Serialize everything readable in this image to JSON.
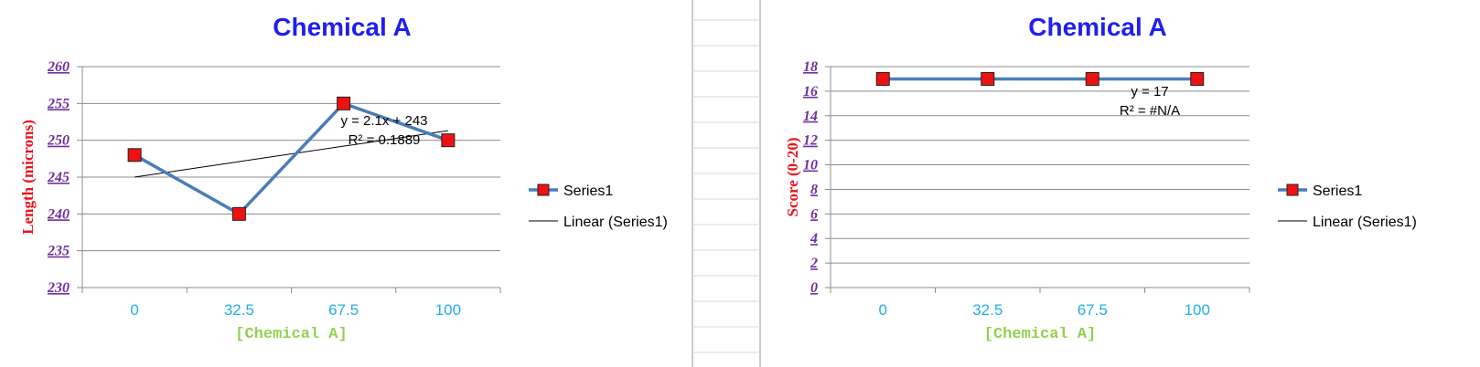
{
  "colors": {
    "title": "#1f1ff0",
    "ytick": "#7030a0",
    "xtick": "#22aee8",
    "xlabel": "#92d050",
    "ylabel": "#e8141e",
    "series_line": "#4a7db8",
    "marker_fill": "#ee1111",
    "trend": "#000000",
    "grid": "#8c8c8c",
    "sheet_grid": "#d9d9d9"
  },
  "chart_data": [
    {
      "type": "line",
      "title": "Chemical A",
      "xlabel": "[Chemical A]",
      "ylabel": "Length (microns)",
      "categories": [
        "0",
        "32.5",
        "67.5",
        "100"
      ],
      "ylim": [
        230,
        260
      ],
      "yticks": [
        "230",
        "235",
        "240",
        "245",
        "250",
        "255",
        "260"
      ],
      "series": [
        {
          "name": "Series1",
          "values": [
            248,
            240,
            255,
            250
          ]
        }
      ],
      "trendline": {
        "name": "Linear (Series1)",
        "equation": "y = 2.1x + 243",
        "r2": "R² = 0.1889",
        "start": 245,
        "end": 251.3
      },
      "legend": {
        "position": "right",
        "entries": [
          "Series1",
          "Linear (Series1)"
        ]
      },
      "grid": true
    },
    {
      "type": "line",
      "title": "Chemical A",
      "xlabel": "[Chemical A]",
      "ylabel": "Score (0-20)",
      "categories": [
        "0",
        "32.5",
        "67.5",
        "100"
      ],
      "ylim": [
        0,
        18
      ],
      "yticks": [
        "0",
        "2",
        "4",
        "6",
        "8",
        "10",
        "12",
        "14",
        "16",
        "18"
      ],
      "series": [
        {
          "name": "Series1",
          "values": [
            17,
            17,
            17,
            17
          ]
        }
      ],
      "trendline": {
        "name": "Linear (Series1)",
        "equation": "y = 17",
        "r2": "R² = #N/A",
        "start": 17,
        "end": 17
      },
      "legend": {
        "position": "right",
        "entries": [
          "Series1",
          "Linear (Series1)"
        ]
      },
      "grid": true
    }
  ]
}
